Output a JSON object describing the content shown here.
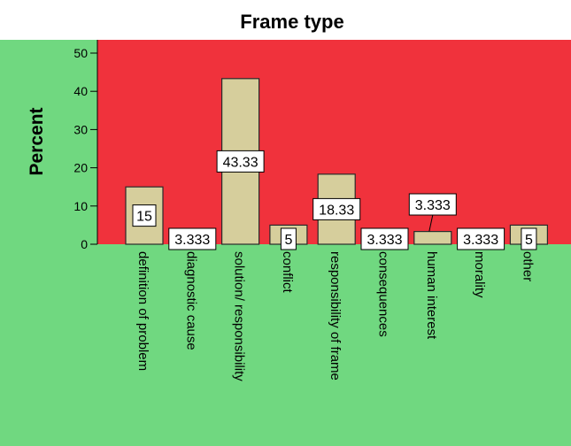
{
  "chart_data": {
    "type": "bar",
    "title": "Frame type",
    "ylabel": "Percent",
    "xlabel": "",
    "ylim": [
      0,
      50
    ],
    "yticks": [
      0,
      10,
      20,
      30,
      40,
      50
    ],
    "grid": false,
    "categories": [
      "definition of problem",
      "diagnostic cause",
      "solution/ responsibility",
      "conflict",
      "responsibility of frame",
      "consequences",
      "human interest",
      "morality",
      "other"
    ],
    "values": [
      15,
      3.333,
      43.33,
      5,
      18.33,
      3.333,
      3.333,
      3.333,
      5
    ],
    "data_labels": [
      "15",
      "3.333",
      "43.33",
      "5",
      "18.33",
      "3.333",
      "3.333",
      "3.333",
      "5"
    ],
    "colors": {
      "plot_background": "#f0323c",
      "outer_background": "#70d880",
      "bar_fill": "#d6ce9c",
      "bar_stroke": "#2a2a2a",
      "label_box": "#ffffff"
    }
  }
}
